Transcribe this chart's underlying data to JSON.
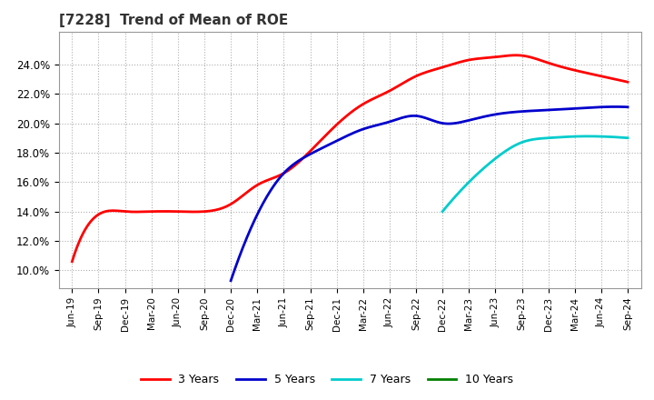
{
  "title": "[7228]  Trend of Mean of ROE",
  "background_color": "#ffffff",
  "plot_background_color": "#ffffff",
  "grid_color": "#b0b0b0",
  "ylim": [
    0.088,
    0.262
  ],
  "series": {
    "3yr": {
      "color": "#ff0000",
      "label": "3 Years",
      "x": [
        0,
        1,
        2,
        3,
        4,
        5,
        6,
        7,
        8,
        9,
        10,
        11,
        12,
        13,
        14,
        15,
        16,
        17,
        18,
        19,
        20,
        21
      ],
      "y": [
        0.106,
        0.138,
        0.14,
        0.14,
        0.14,
        0.14,
        0.145,
        0.158,
        0.166,
        0.181,
        0.199,
        0.213,
        0.222,
        0.232,
        0.238,
        0.243,
        0.245,
        0.246,
        0.241,
        0.236,
        0.232,
        0.228
      ]
    },
    "5yr": {
      "color": "#0000cc",
      "label": "5 Years",
      "x": [
        6,
        7,
        8,
        9,
        10,
        11,
        12,
        13,
        14,
        15,
        16,
        17,
        18,
        19,
        20,
        21
      ],
      "y": [
        0.093,
        0.138,
        0.166,
        0.179,
        0.188,
        0.196,
        0.201,
        0.205,
        0.2,
        0.202,
        0.206,
        0.208,
        0.209,
        0.21,
        0.211,
        0.211
      ]
    },
    "7yr": {
      "color": "#00cccc",
      "label": "7 Years",
      "x": [
        14,
        15,
        16,
        17,
        18,
        19,
        20,
        21
      ],
      "y": [
        0.14,
        0.16,
        0.176,
        0.187,
        0.19,
        0.191,
        0.191,
        0.19
      ]
    },
    "10yr": {
      "color": "#008000",
      "label": "10 Years",
      "x": [],
      "y": []
    }
  },
  "xtick_labels": [
    "Jun-19",
    "Sep-19",
    "Dec-19",
    "Mar-20",
    "Jun-20",
    "Sep-20",
    "Dec-20",
    "Mar-21",
    "Jun-21",
    "Sep-21",
    "Dec-21",
    "Mar-22",
    "Jun-22",
    "Sep-22",
    "Dec-22",
    "Mar-23",
    "Jun-23",
    "Sep-23",
    "Dec-23",
    "Mar-24",
    "Jun-24",
    "Sep-24"
  ],
  "ytick_vals": [
    0.1,
    0.12,
    0.14,
    0.16,
    0.18,
    0.2,
    0.22,
    0.24
  ],
  "legend_labels": [
    "3 Years",
    "5 Years",
    "7 Years",
    "10 Years"
  ],
  "legend_colors": [
    "#ff0000",
    "#0000cc",
    "#00cccc",
    "#008000"
  ]
}
